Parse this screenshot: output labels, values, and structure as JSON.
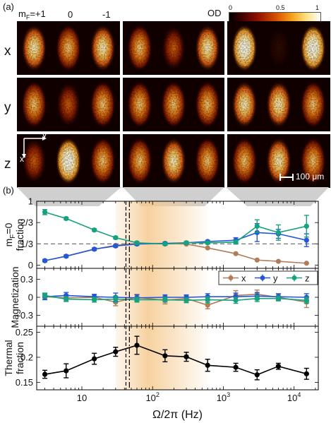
{
  "panel_a": {
    "label": "(a)",
    "mf_labels": [
      "m",
      "F",
      "=+1",
      "0",
      "-1"
    ],
    "row_labels": [
      "x",
      "y",
      "z"
    ],
    "colorbar": {
      "title": "OD",
      "ticks": [
        "0",
        "0.5",
        "1"
      ]
    },
    "axes_inset": {
      "y_label": "y'",
      "x_label": "x'"
    },
    "scalebar": "100 μm"
  },
  "panel_b": {
    "label": "(b)"
  },
  "chart_data": [
    {
      "type": "line",
      "ylabel": "m",
      "ylabel_parts": [
        "m",
        "F",
        "=0",
        "fraction"
      ],
      "x": [
        3,
        6,
        15,
        30,
        60,
        150,
        300,
        600,
        1500,
        3000,
        6000,
        15000
      ],
      "xscale": "log",
      "xlim": [
        2.3,
        22000
      ],
      "ylim": [
        -0.05,
        1.0
      ],
      "ytick_values": [
        0,
        0.3333,
        0.6667,
        1
      ],
      "ytick_labels": [
        "0",
        "1/3",
        "2/3",
        "1"
      ],
      "reference_line": 0.3333,
      "series": [
        {
          "name": "x",
          "color": "#b07c5a",
          "values": [
            0.07,
            0.14,
            0.25,
            0.31,
            0.34,
            0.34,
            0.33,
            0.27,
            0.18,
            0.08,
            0.06,
            0.03
          ],
          "err": [
            0,
            0,
            0,
            0,
            0,
            0,
            0,
            0,
            0,
            0,
            0,
            0
          ]
        },
        {
          "name": "y",
          "color": "#2357d8",
          "values": [
            0.07,
            0.14,
            0.25,
            0.3,
            0.33,
            0.34,
            0.35,
            0.37,
            0.39,
            0.51,
            0.49,
            0.39
          ],
          "err": [
            0.02,
            0.02,
            0.02,
            0.02,
            0.02,
            0.02,
            0.02,
            0.02,
            0.04,
            0.14,
            0.07,
            0.1
          ]
        },
        {
          "name": "z",
          "color": "#16a27e",
          "values": [
            0.83,
            0.73,
            0.55,
            0.43,
            0.35,
            0.33,
            0.35,
            0.35,
            0.36,
            0.61,
            0.51,
            0.61
          ],
          "err": [
            0.04,
            0.02,
            0.02,
            0.02,
            0.02,
            0.02,
            0.02,
            0.02,
            0.03,
            0.1,
            0.12,
            0.17
          ]
        }
      ]
    },
    {
      "type": "line",
      "ylabel": "Magnetization",
      "x": [
        3,
        6,
        15,
        30,
        60,
        150,
        300,
        600,
        1500,
        3000,
        6000,
        15000
      ],
      "xscale": "log",
      "xlim": [
        2.3,
        22000
      ],
      "ylim": [
        -0.48,
        0.48
      ],
      "ytick_values": [
        -0.3,
        0,
        0.3
      ],
      "ytick_labels": [
        "-0.3",
        "0",
        "0.3"
      ],
      "legend": {
        "placement": "top-right",
        "labels": [
          "x",
          "y",
          "z"
        ]
      },
      "series": [
        {
          "name": "x",
          "color": "#b07c5a",
          "values": [
            0.01,
            -0.01,
            0.0,
            -0.08,
            0.0,
            -0.05,
            -0.02,
            -0.13,
            0.03,
            0.05,
            0.0,
            -0.08
          ],
          "err": [
            0.04,
            0.05,
            0.05,
            0.06,
            0.05,
            0.06,
            0.05,
            0.06,
            0.08,
            0.07,
            0.05,
            0.09
          ]
        },
        {
          "name": "y",
          "color": "#2357d8",
          "values": [
            0.01,
            0.03,
            0.01,
            0.0,
            -0.01,
            0.0,
            0.0,
            0.01,
            0.01,
            0.02,
            0.01,
            0.0
          ],
          "err": [
            0.05,
            0.05,
            0.04,
            0.07,
            0.05,
            0.04,
            0.04,
            0.05,
            0.06,
            0.06,
            0.05,
            0.06
          ]
        },
        {
          "name": "z",
          "color": "#16a27e",
          "values": [
            0.03,
            -0.03,
            -0.04,
            -0.03,
            -0.04,
            -0.04,
            -0.05,
            -0.04,
            -0.05,
            -0.02,
            -0.02,
            -0.05
          ],
          "err": [
            0.04,
            0.04,
            0.04,
            0.05,
            0.04,
            0.04,
            0.04,
            0.05,
            0.05,
            0.05,
            0.04,
            0.05
          ]
        }
      ]
    },
    {
      "type": "line",
      "ylabel": "Thermal fraction",
      "ylabel_parts": [
        "Thermal",
        "fraction"
      ],
      "xlabel": "Ω/2π (Hz)",
      "x": [
        3,
        6,
        15,
        30,
        60,
        150,
        300,
        600,
        1500,
        3000,
        6000,
        15000
      ],
      "xscale": "log",
      "xlim": [
        2.3,
        22000
      ],
      "xtick_values": [
        10,
        100,
        1000,
        10000
      ],
      "xtick_labels": [
        "10",
        "2",
        "3",
        "4"
      ],
      "ylim": [
        0.135,
        0.262
      ],
      "ytick_values": [
        0.15,
        0.2,
        0.25
      ],
      "ytick_labels": [
        "0.15",
        "0.2",
        "0.25"
      ],
      "series": [
        {
          "name": "thermal",
          "color": "#000000",
          "values": [
            0.166,
            0.173,
            0.197,
            0.211,
            0.224,
            0.203,
            0.201,
            0.184,
            0.18,
            0.165,
            0.182,
            0.167
          ],
          "err": [
            0.008,
            0.014,
            0.011,
            0.009,
            0.018,
            0.012,
            0.009,
            0.012,
            0.008,
            0.01,
            0.006,
            0.011
          ]
        }
      ]
    }
  ],
  "shared_features": {
    "shaded_band_hz": [
      30,
      600
    ],
    "shade_color": "#f5c98e",
    "vline_dashed_hz": 42,
    "vline_dashdot_hz": 47
  }
}
